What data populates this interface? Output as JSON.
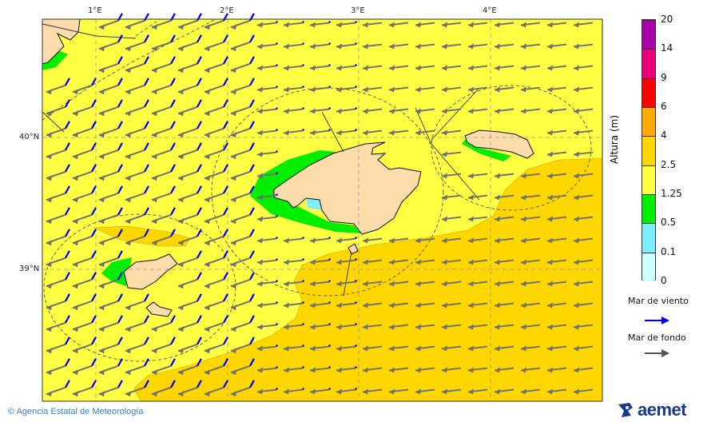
{
  "map": {
    "lon_ticks": [
      "1°E",
      "2°E",
      "3°E",
      "4°E"
    ],
    "lat_ticks": [
      "40°N",
      "39°N"
    ],
    "colors": {
      "sea_1_25_2_5": "#ffff44",
      "sea_2_5_4": "#ffd700",
      "sea_0_5_1_25": "#00ee00",
      "sea_0_1_0_5": "#80eeff",
      "land": "#fcdcaa",
      "wind_sea_arrow": "#0000ee",
      "swell_arrow": "#707070"
    }
  },
  "colorbar": {
    "label": "Altura (m)",
    "levels": [
      "0",
      "0.1",
      "0.5",
      "1.25",
      "2.5",
      "4",
      "6",
      "9",
      "14",
      "20"
    ],
    "colors": [
      "#ccffff",
      "#80eeff",
      "#00ee00",
      "#ffff44",
      "#ffd700",
      "#ffaa00",
      "#ff0000",
      "#e6007a",
      "#aa00aa"
    ]
  },
  "legend": {
    "wind_sea": "Mar de viento",
    "swell": "Mar de fondo"
  },
  "footer": {
    "copyright": "© Agencia Estatal de Meteorología",
    "logo": "aemet"
  }
}
